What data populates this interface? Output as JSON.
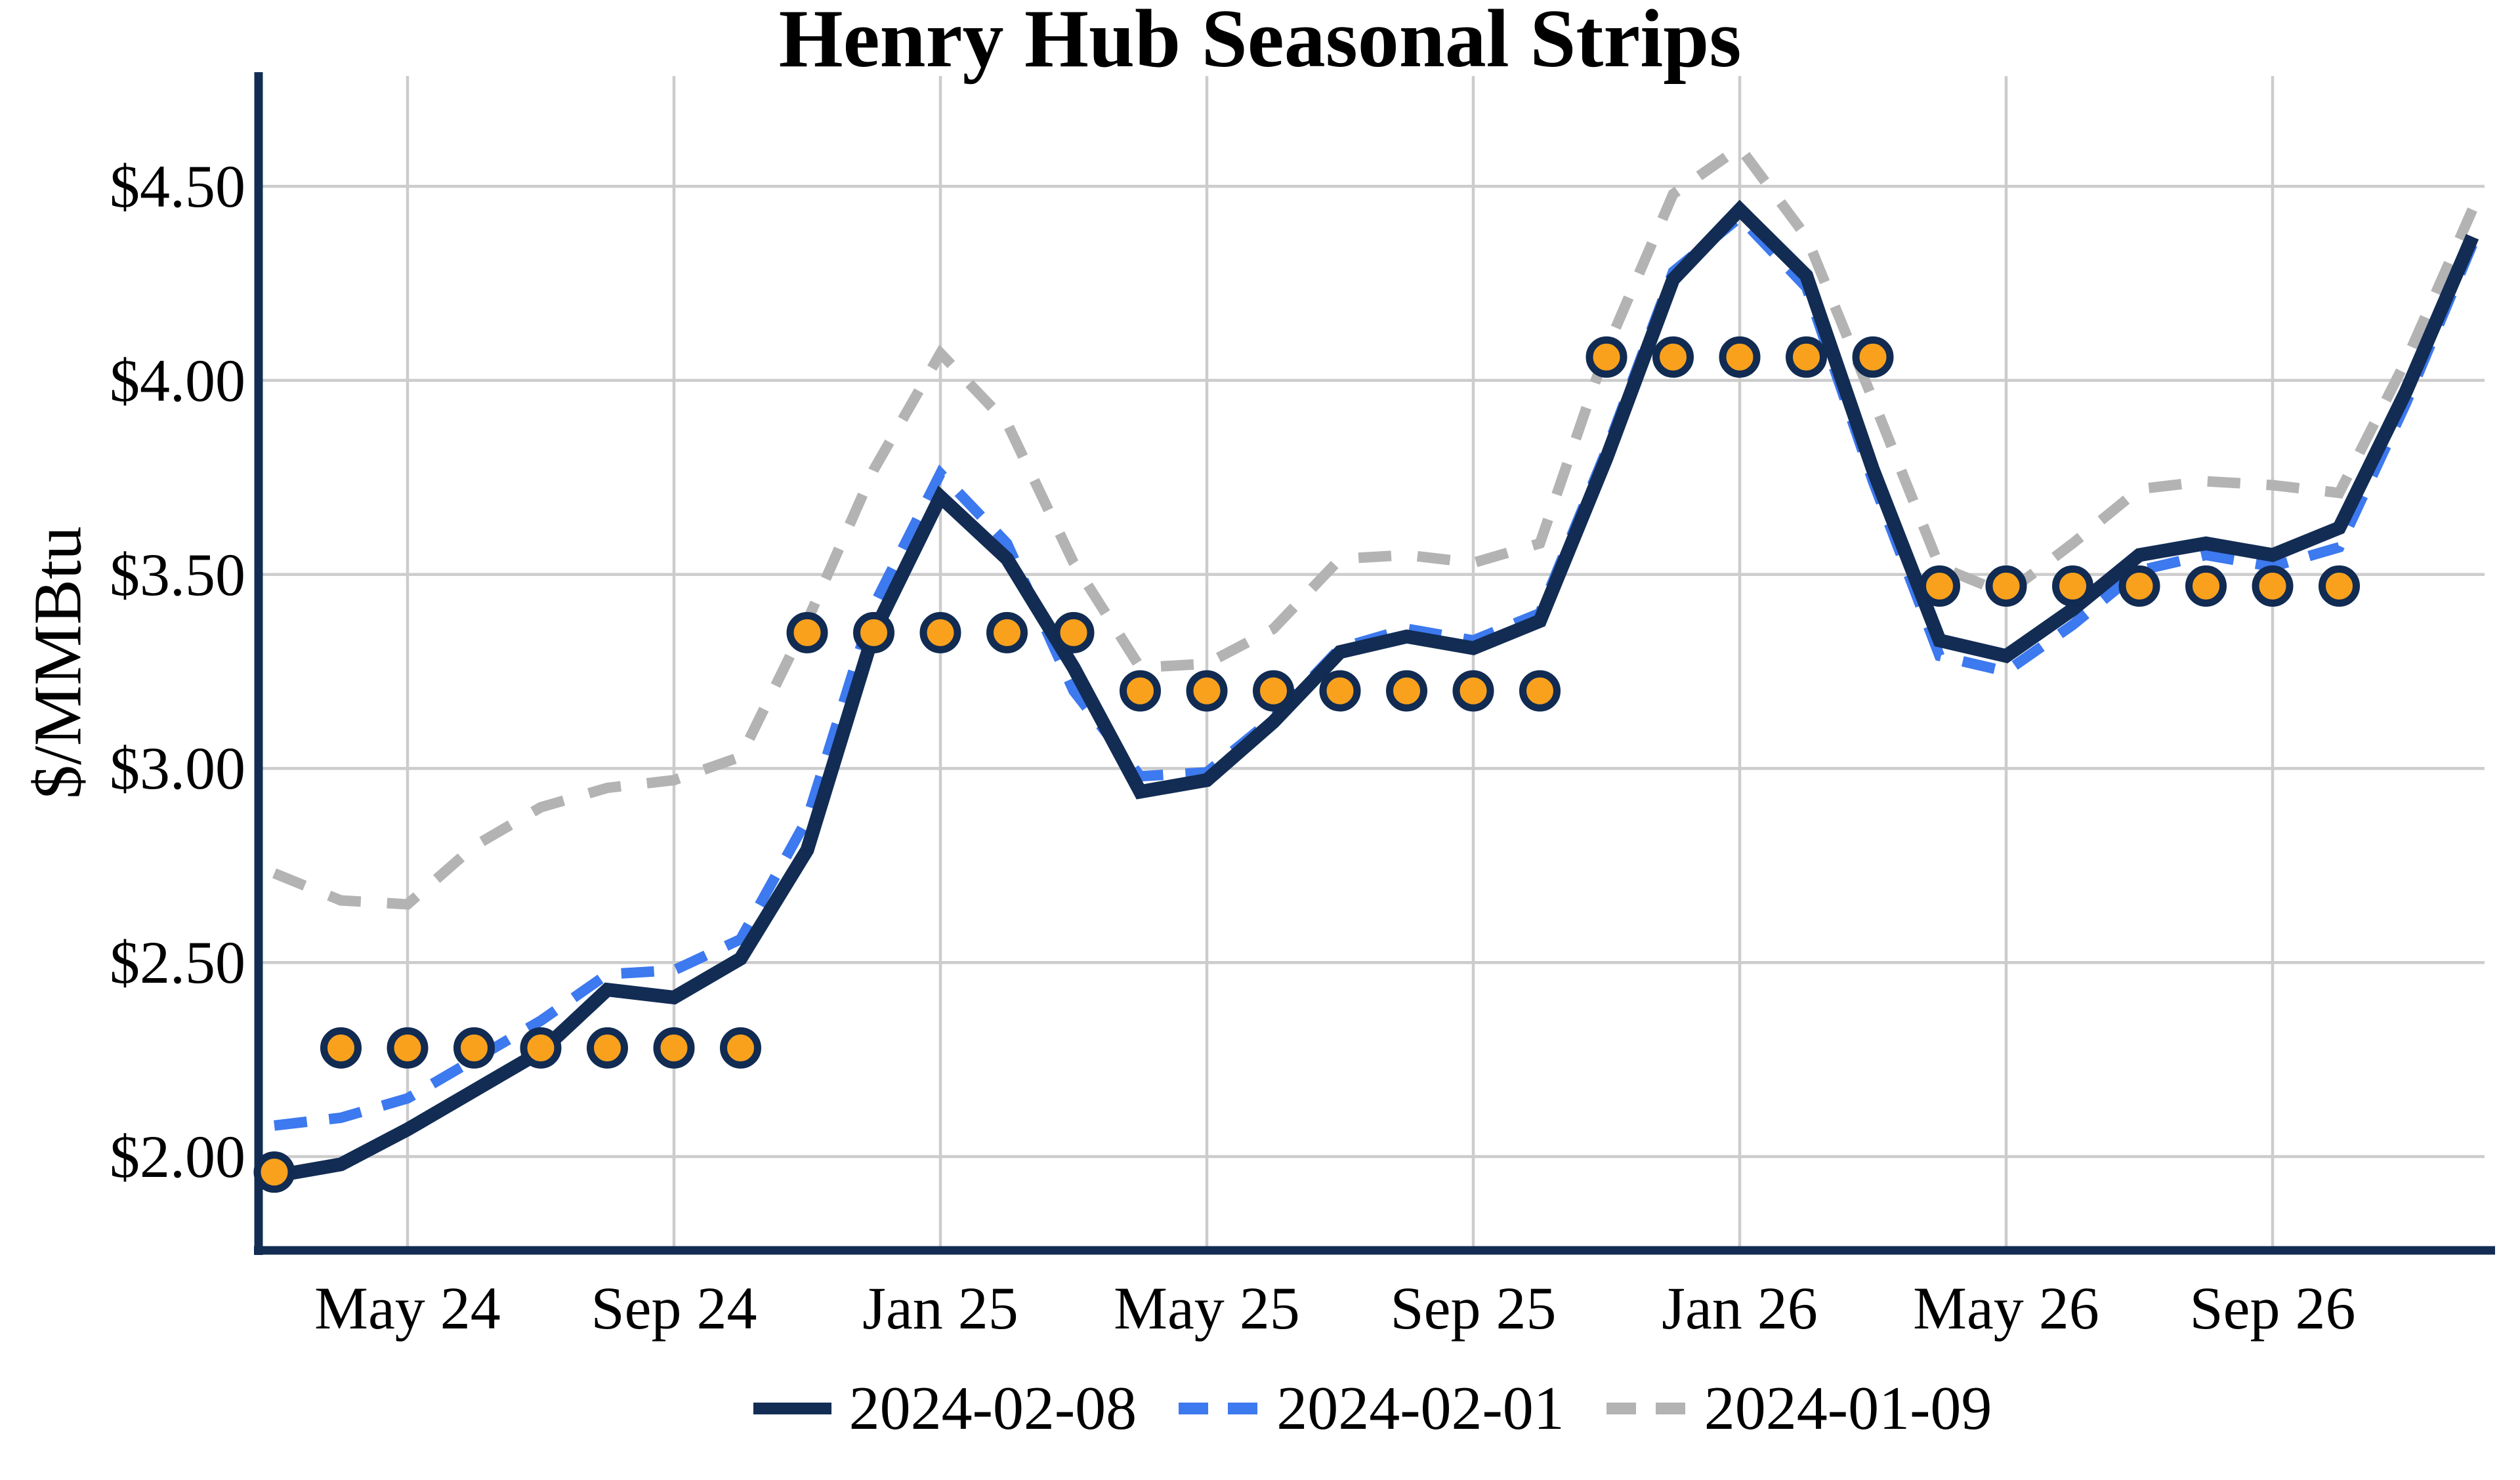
{
  "chart_data": {
    "type": "line",
    "title": "Henry Hub Seasonal Strips",
    "xlabel": "",
    "ylabel": "$/MMBtu",
    "grid": true,
    "legend_position": "bottom-center",
    "ylim": [
      1.76,
      4.77
    ],
    "categories": [
      "Mar 24",
      "Apr 24",
      "May 24",
      "Jun 24",
      "Jul 24",
      "Aug 24",
      "Sep 24",
      "Oct 24",
      "Nov 24",
      "Dec 24",
      "Jan 25",
      "Feb 25",
      "Mar 25",
      "Apr 25",
      "May 25",
      "Jun 25",
      "Jul 25",
      "Aug 25",
      "Sep 25",
      "Oct 25",
      "Nov 25",
      "Dec 25",
      "Jan 26",
      "Feb 26",
      "Mar 26",
      "Apr 26",
      "May 26",
      "Jun 26",
      "Jul 26",
      "Aug 26",
      "Sep 26",
      "Oct 26",
      "Nov 26",
      "Dec 26"
    ],
    "x_tick_labels": [
      "May 24",
      "Sep 24",
      "Jan 25",
      "May 25",
      "Sep 25",
      "Jan 26",
      "May 26",
      "Sep 26"
    ],
    "x_tick_indices": [
      2,
      6,
      10,
      14,
      18,
      22,
      26,
      30
    ],
    "y_ticks": [
      {
        "value": 2.0,
        "label": "$2.00"
      },
      {
        "value": 2.5,
        "label": "$2.50"
      },
      {
        "value": 3.0,
        "label": "$3.00"
      },
      {
        "value": 3.5,
        "label": "$3.50"
      },
      {
        "value": 4.0,
        "label": "$4.00"
      },
      {
        "value": 4.5,
        "label": "$4.50"
      }
    ],
    "series": [
      {
        "name": "2024-02-08",
        "style": "solid",
        "color": "#122c54",
        "values": [
          1.95,
          1.98,
          2.07,
          2.17,
          2.27,
          2.43,
          2.41,
          2.51,
          2.79,
          3.35,
          3.7,
          3.54,
          3.26,
          2.94,
          2.97,
          3.12,
          3.3,
          3.34,
          3.31,
          3.38,
          3.8,
          4.26,
          4.44,
          4.27,
          3.77,
          3.33,
          3.29,
          3.41,
          3.55,
          3.58,
          3.55,
          3.62,
          3.97,
          4.37
        ]
      },
      {
        "name": "2024-02-01",
        "style": "dashed",
        "color": "#3d79ef",
        "values": [
          2.08,
          2.1,
          2.15,
          2.25,
          2.35,
          2.47,
          2.48,
          2.56,
          2.87,
          3.42,
          3.76,
          3.58,
          3.2,
          2.98,
          2.99,
          3.13,
          3.31,
          3.36,
          3.33,
          3.4,
          3.82,
          4.28,
          4.42,
          4.24,
          3.74,
          3.29,
          3.25,
          3.37,
          3.51,
          3.55,
          3.52,
          3.57,
          3.94,
          4.35
        ]
      },
      {
        "name": "2024-01-09",
        "style": "dashed",
        "color": "#b3b3b3",
        "values": [
          2.73,
          2.66,
          2.65,
          2.8,
          2.9,
          2.95,
          2.97,
          3.03,
          3.38,
          3.77,
          4.07,
          3.89,
          3.53,
          3.26,
          3.27,
          3.36,
          3.54,
          3.55,
          3.53,
          3.58,
          4.08,
          4.48,
          4.6,
          4.37,
          3.95,
          3.52,
          3.45,
          3.58,
          3.72,
          3.74,
          3.73,
          3.71,
          4.05,
          4.44
        ]
      }
    ],
    "markers": {
      "name": "seasonal-strip-dots",
      "fill_color": "#f9a11d",
      "edge_color": "#112b52",
      "groups": [
        {
          "strip": "Mar 24",
          "value": 1.96,
          "start_index": 0,
          "end_index": 0
        },
        {
          "strip": "Apr 24 - Oct 24",
          "value": 2.28,
          "start_index": 1,
          "end_index": 7
        },
        {
          "strip": "Nov 24 - Mar 25",
          "value": 3.35,
          "start_index": 8,
          "end_index": 12
        },
        {
          "strip": "Apr 25 - Oct 25",
          "value": 3.2,
          "start_index": 13,
          "end_index": 19
        },
        {
          "strip": "Nov 25 - Mar 26",
          "value": 4.06,
          "start_index": 20,
          "end_index": 24
        },
        {
          "strip": "Apr 26 - Oct 26",
          "value": 3.47,
          "start_index": 25,
          "end_index": 31
        }
      ]
    }
  },
  "colors": {
    "axis_spine": "#122c54",
    "gridline": "#cccccc",
    "background": "#ffffff",
    "text": "#000000"
  }
}
